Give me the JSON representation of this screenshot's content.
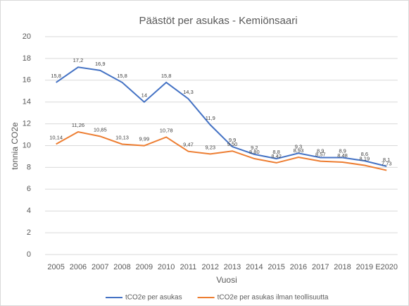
{
  "chart_data": {
    "type": "line",
    "title": "Päästöt per asukas - Kemiönsaari",
    "x_label": "Vuosi",
    "y_label": "tonnia CO2e",
    "categories": [
      "2005",
      "2006",
      "2007",
      "2008",
      "2009",
      "2010",
      "2011",
      "2012",
      "2013",
      "2014",
      "2015",
      "2016",
      "2017",
      "2018",
      "2019",
      "E2020"
    ],
    "series": [
      {
        "name": "tCO2e per asukas",
        "color": "#4472c4",
        "values": [
          15.8,
          17.2,
          16.9,
          15.8,
          14,
          15.8,
          14.3,
          11.9,
          9.9,
          9.2,
          8.8,
          9.3,
          8.9,
          8.9,
          8.6,
          8.1
        ],
        "value_labels": [
          "15,8",
          "17,2",
          "16,9",
          "15,8",
          "14",
          "15,8",
          "14,3",
          "11,9",
          "9,9",
          "9,2",
          "8,8",
          "9,3",
          "8,9",
          "8,9",
          "8,6",
          "8,1"
        ]
      },
      {
        "name": "tCO2e per asukas ilman teollisuutta",
        "color": "#ed7d31",
        "values": [
          10.14,
          11.26,
          10.85,
          10.13,
          9.99,
          10.78,
          9.47,
          9.23,
          9.5,
          8.8,
          8.42,
          8.93,
          8.57,
          8.48,
          8.19,
          7.73
        ],
        "value_labels": [
          "10,14",
          "11,26",
          "10,85",
          "10,13",
          "9,99",
          "10,78",
          "9,47",
          "9,23",
          "9,50",
          "8,80",
          "8,42",
          "8,93",
          "8,57",
          "8,48",
          "8,19",
          "7,73"
        ]
      }
    ],
    "ylim": [
      0,
      20
    ],
    "yticks": [
      0,
      2,
      4,
      6,
      8,
      10,
      12,
      14,
      16,
      18,
      20
    ],
    "grid": true,
    "legend": "bottom"
  }
}
